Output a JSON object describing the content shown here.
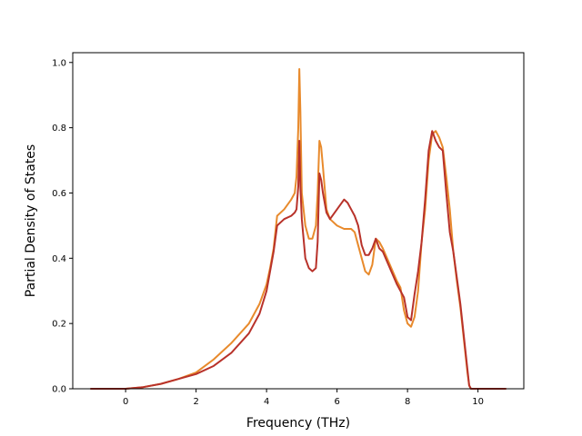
{
  "chart_data": {
    "type": "line",
    "title": "",
    "xlabel": "Frequency (THz)",
    "ylabel": "Partial Density of States",
    "xlim": [
      -1.5,
      11.3
    ],
    "ylim": [
      0.0,
      1.03
    ],
    "xticks": [
      0,
      2,
      4,
      6,
      8,
      10
    ],
    "yticks": [
      0.0,
      0.2,
      0.4,
      0.6,
      0.8,
      1.0
    ],
    "xtick_labels": [
      "0",
      "2",
      "4",
      "6",
      "8",
      "10"
    ],
    "ytick_labels": [
      "0.0",
      "0.2",
      "0.4",
      "0.6",
      "0.8",
      "1.0"
    ],
    "grid": false,
    "legend": "none",
    "series": [
      {
        "color": "#e88a2c",
        "x": [
          -1.0,
          0.0,
          0.5,
          1.0,
          1.5,
          2.0,
          2.5,
          3.0,
          3.5,
          3.8,
          4.0,
          4.1,
          4.2,
          4.3,
          4.5,
          4.7,
          4.8,
          4.85,
          4.9,
          4.93,
          4.96,
          5.0,
          5.05,
          5.1,
          5.2,
          5.3,
          5.4,
          5.45,
          5.5,
          5.55,
          5.6,
          5.7,
          5.8,
          6.0,
          6.2,
          6.4,
          6.5,
          6.6,
          6.7,
          6.8,
          6.9,
          7.0,
          7.1,
          7.2,
          7.3,
          7.5,
          7.7,
          7.8,
          7.9,
          8.0,
          8.1,
          8.2,
          8.3,
          8.4,
          8.5,
          8.6,
          8.7,
          8.8,
          8.9,
          9.0,
          9.1,
          9.2,
          9.3,
          9.4,
          9.5,
          9.6,
          9.7,
          9.75,
          9.8,
          9.9,
          10.0,
          10.8
        ],
        "y": [
          0.0,
          0.0,
          0.005,
          0.015,
          0.03,
          0.05,
          0.09,
          0.14,
          0.2,
          0.26,
          0.32,
          0.37,
          0.43,
          0.53,
          0.55,
          0.58,
          0.6,
          0.65,
          0.8,
          0.98,
          0.85,
          0.6,
          0.55,
          0.5,
          0.46,
          0.46,
          0.5,
          0.6,
          0.76,
          0.74,
          0.68,
          0.55,
          0.52,
          0.5,
          0.49,
          0.49,
          0.48,
          0.44,
          0.4,
          0.36,
          0.35,
          0.38,
          0.46,
          0.45,
          0.43,
          0.38,
          0.33,
          0.31,
          0.24,
          0.2,
          0.19,
          0.22,
          0.3,
          0.45,
          0.55,
          0.7,
          0.78,
          0.79,
          0.77,
          0.74,
          0.65,
          0.55,
          0.42,
          0.33,
          0.25,
          0.15,
          0.05,
          0.01,
          0.0,
          0.0,
          0.0,
          0.0
        ]
      },
      {
        "color": "#b8322a",
        "x": [
          -1.0,
          0.0,
          0.5,
          1.0,
          1.5,
          2.0,
          2.5,
          3.0,
          3.5,
          3.8,
          4.0,
          4.1,
          4.2,
          4.3,
          4.5,
          4.7,
          4.8,
          4.85,
          4.9,
          4.93,
          4.96,
          5.0,
          5.05,
          5.1,
          5.2,
          5.3,
          5.4,
          5.45,
          5.5,
          5.55,
          5.6,
          5.7,
          5.8,
          6.0,
          6.2,
          6.3,
          6.4,
          6.5,
          6.6,
          6.7,
          6.8,
          6.9,
          7.0,
          7.1,
          7.2,
          7.3,
          7.5,
          7.7,
          7.8,
          7.9,
          8.0,
          8.1,
          8.2,
          8.3,
          8.4,
          8.5,
          8.6,
          8.7,
          8.8,
          8.9,
          9.0,
          9.1,
          9.2,
          9.3,
          9.4,
          9.5,
          9.6,
          9.7,
          9.75,
          9.8,
          9.9,
          10.0,
          10.8
        ],
        "y": [
          0.0,
          0.0,
          0.005,
          0.015,
          0.03,
          0.045,
          0.07,
          0.11,
          0.17,
          0.23,
          0.3,
          0.36,
          0.42,
          0.5,
          0.52,
          0.53,
          0.54,
          0.55,
          0.62,
          0.76,
          0.62,
          0.52,
          0.46,
          0.4,
          0.37,
          0.36,
          0.37,
          0.45,
          0.66,
          0.64,
          0.6,
          0.54,
          0.52,
          0.55,
          0.58,
          0.57,
          0.55,
          0.53,
          0.5,
          0.44,
          0.41,
          0.41,
          0.43,
          0.46,
          0.43,
          0.42,
          0.37,
          0.32,
          0.3,
          0.28,
          0.22,
          0.21,
          0.29,
          0.36,
          0.45,
          0.58,
          0.73,
          0.79,
          0.76,
          0.74,
          0.73,
          0.6,
          0.48,
          0.42,
          0.34,
          0.26,
          0.16,
          0.06,
          0.01,
          0.0,
          0.0,
          0.0,
          0.0
        ]
      }
    ]
  }
}
